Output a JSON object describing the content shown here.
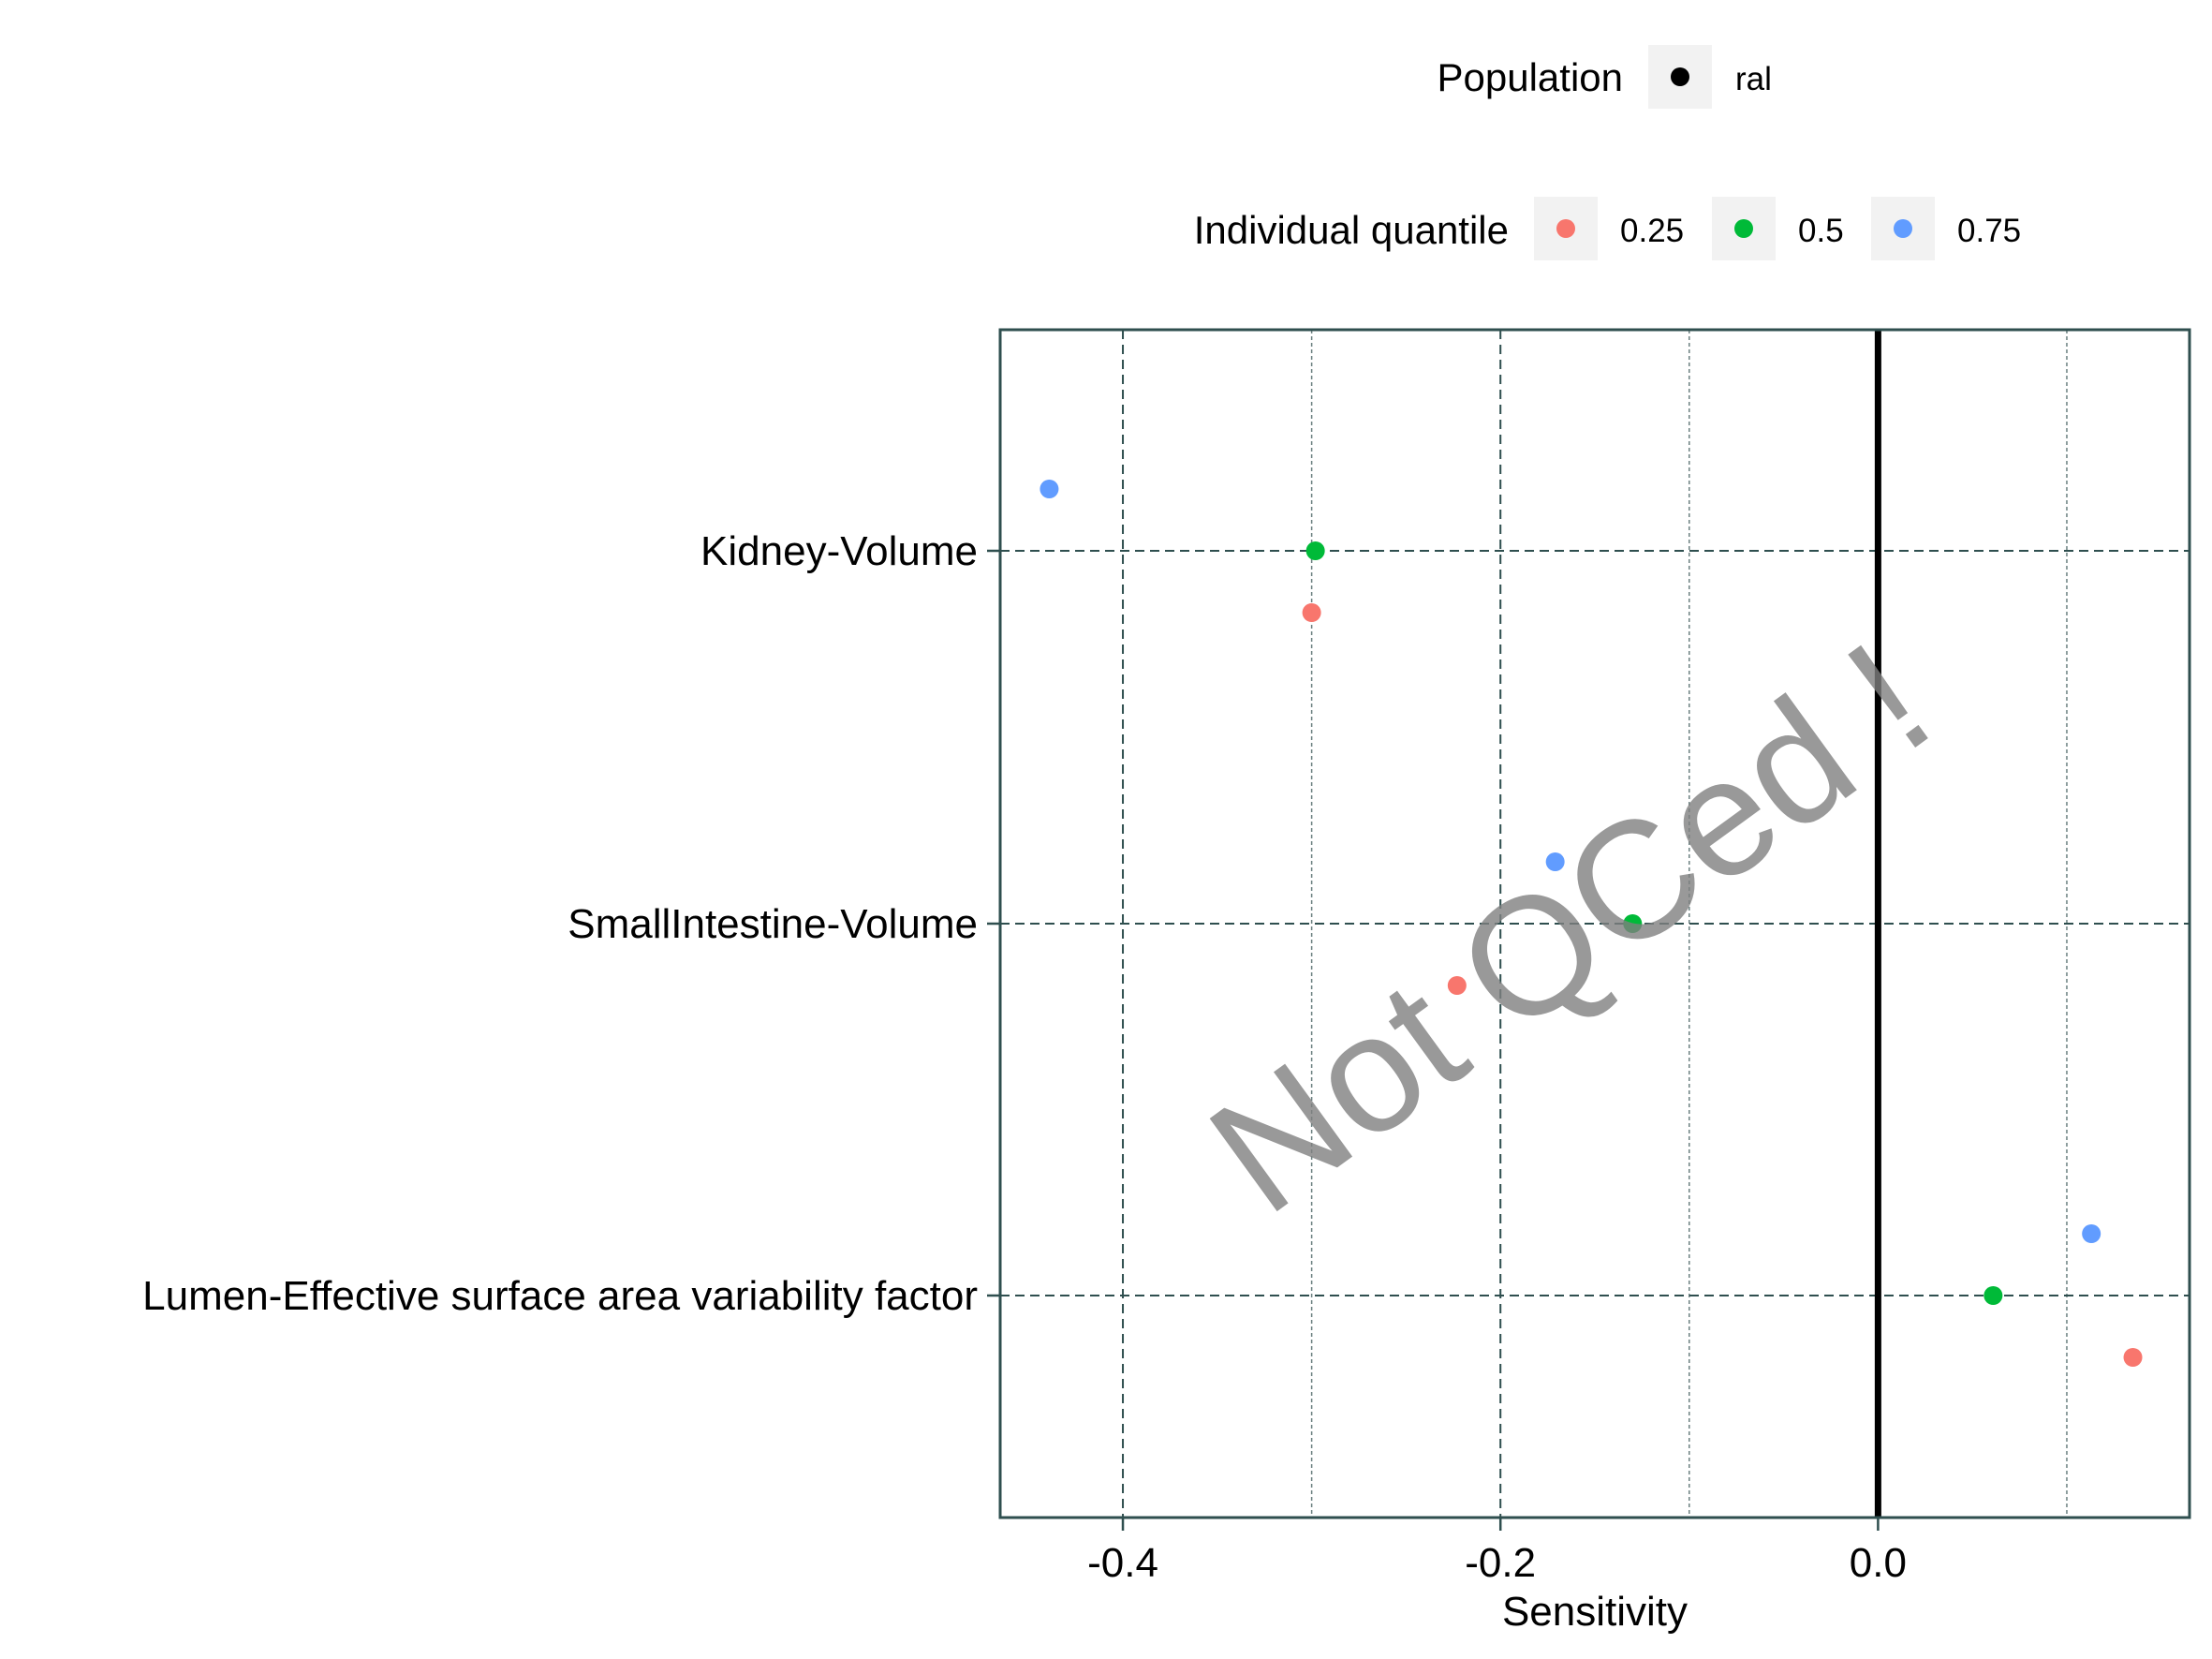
{
  "chart_data": {
    "type": "scatter",
    "title": "",
    "xlabel": "Sensitivity",
    "ylabel": "",
    "xlim": [
      -0.465,
      0.165
    ],
    "x_ticks": [
      "-0.4",
      "-0.2",
      "0.0"
    ],
    "x_tick_values": [
      -0.4,
      -0.2,
      0.0
    ],
    "x_minor_values": [
      -0.3,
      -0.1,
      0.1
    ],
    "grid": true,
    "reference_line_x": 0.0,
    "categories": [
      "Kidney-Volume",
      "SmallIntestine-Volume",
      "Lumen-Effective surface area variability factor"
    ],
    "series": [
      {
        "name": "0.25",
        "color": "#F8766D",
        "values": [
          -0.3,
          -0.223,
          0.135
        ]
      },
      {
        "name": "0.5",
        "color": "#00BA38",
        "values": [
          -0.298,
          -0.13,
          0.061
        ]
      },
      {
        "name": "0.75",
        "color": "#619CFF",
        "values": [
          -0.439,
          -0.171,
          0.113
        ]
      }
    ],
    "legend": {
      "position": "top",
      "population_title": "Population",
      "population_entries": [
        {
          "label": "ral",
          "color": "#000000"
        }
      ],
      "quantile_title": "Individual quantile"
    },
    "watermark": "Not QCed !"
  }
}
